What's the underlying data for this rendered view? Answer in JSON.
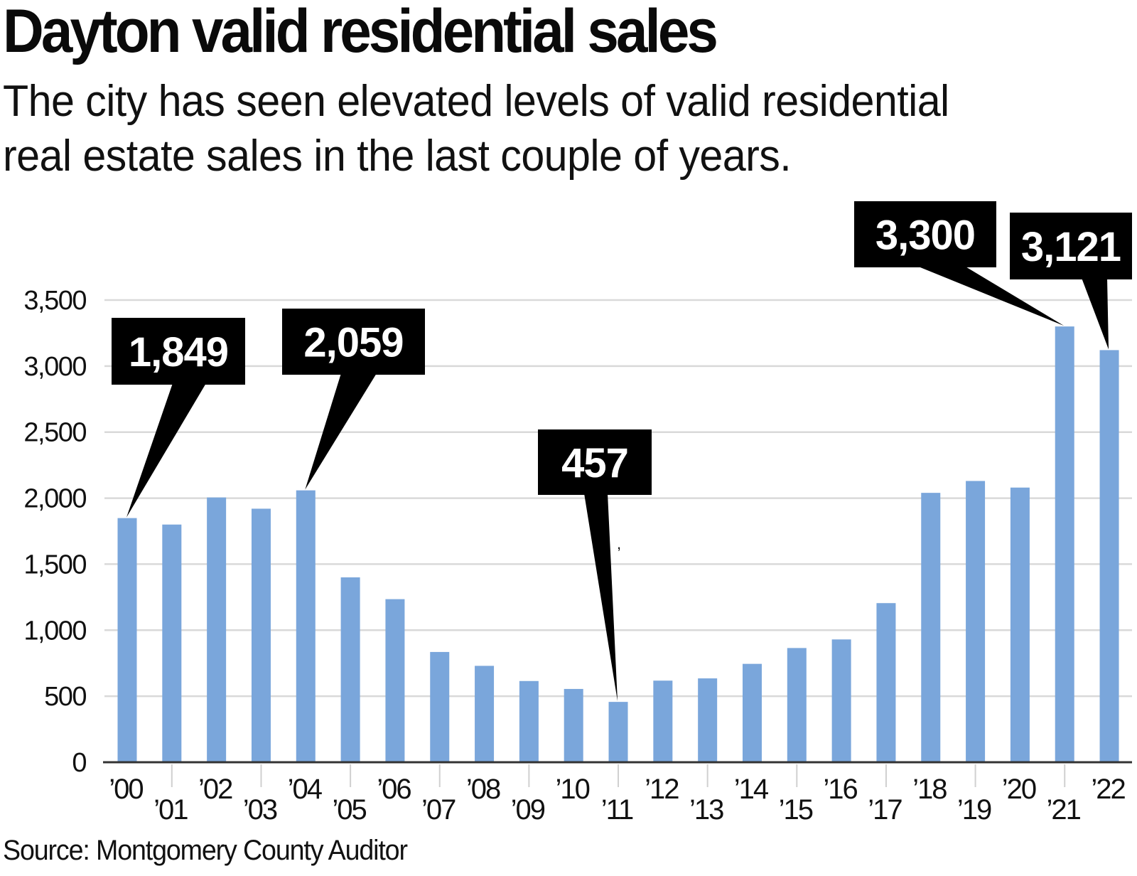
{
  "header": {
    "title": "Dayton valid residential sales",
    "subtitle_lines": [
      "The city has seen elevated levels of valid residential",
      "real estate sales in the last couple of years."
    ]
  },
  "footer": {
    "source": "Source: Montgomery County Auditor"
  },
  "colors": {
    "bar": "#7aa6db",
    "callout_bg": "#000000",
    "callout_text": "#ffffff",
    "gridline": "#d9d9d9",
    "axis": "#333333"
  },
  "chart_data": {
    "type": "bar",
    "title": "Dayton valid residential sales",
    "subtitle": "The city has seen elevated levels of valid residential real estate sales in the last couple of years.",
    "xlabel": "",
    "ylabel": "",
    "categories": [
      "'00",
      "'01",
      "'02",
      "'03",
      "'04",
      "'05",
      "'06",
      "'07",
      "'08",
      "'09",
      "'10",
      "'11",
      "'12",
      "'13",
      "'14",
      "'15",
      "'16",
      "'17",
      "'18",
      "'19",
      "'20",
      "'21",
      "'22"
    ],
    "values": [
      1849,
      1800,
      2005,
      1920,
      2059,
      1400,
      1235,
      835,
      730,
      615,
      555,
      457,
      618,
      635,
      745,
      865,
      930,
      1205,
      2040,
      2130,
      2080,
      3300,
      3121
    ],
    "ylim": [
      0,
      3500
    ],
    "yticks": [
      0,
      500,
      1000,
      1500,
      2000,
      2500,
      3000,
      3500
    ],
    "ytick_labels": [
      "0",
      "500",
      "1,000",
      "1,500",
      "2,000",
      "2,500",
      "3,000",
      "3,500"
    ],
    "grid": true,
    "legend": "none",
    "annotations": [
      {
        "category": "'00",
        "value": 1849,
        "label": "1,849"
      },
      {
        "category": "'04",
        "value": 2059,
        "label": "2,059"
      },
      {
        "category": "'11",
        "value": 457,
        "label": "457"
      },
      {
        "category": "'21",
        "value": 3300,
        "label": "3,300"
      },
      {
        "category": "'22",
        "value": 3121,
        "label": "3,121"
      }
    ],
    "source": "Montgomery County Auditor"
  }
}
